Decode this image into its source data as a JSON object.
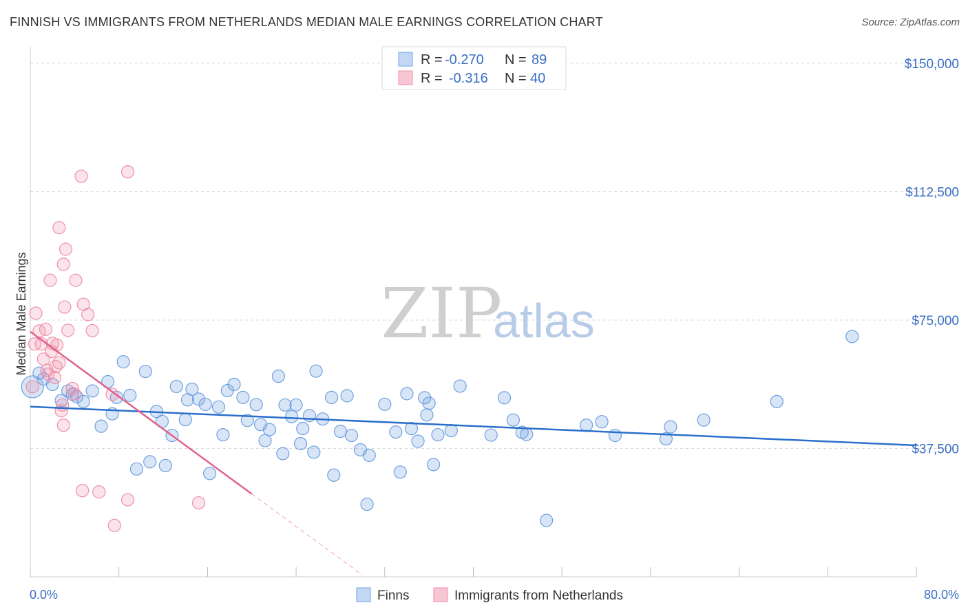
{
  "title": "FINNISH VS IMMIGRANTS FROM NETHERLANDS MEDIAN MALE EARNINGS CORRELATION CHART",
  "source": "Source: ZipAtlas.com",
  "watermark": {
    "part1": "ZIP",
    "part2": "atlas"
  },
  "colors": {
    "finns": "#6fa0e0",
    "finns_line": "#2a6fcb",
    "neth": "#f08fab",
    "neth_line": "#e0628c",
    "axis_text": "#3a6fc4"
  },
  "legend_top": [
    {
      "r_label": "R =",
      "r_value": "-0.270",
      "n_label": "N =",
      "n_value": "89"
    },
    {
      "r_label": "R =",
      "r_value": "-0.316",
      "n_label": "N =",
      "n_value": "40"
    }
  ],
  "legend_bottom": [
    {
      "label": "Finns"
    },
    {
      "label": "Immigrants from Netherlands"
    }
  ],
  "chart_data": {
    "type": "scatter",
    "title": "FINNISH VS IMMIGRANTS FROM NETHERLANDS MEDIAN MALE EARNINGS CORRELATION CHART",
    "xlabel": "",
    "ylabel": "Median Male Earnings",
    "xlim": [
      0,
      80
    ],
    "ylim": [
      0,
      153000
    ],
    "x_tick_labels": [
      "0.0%",
      "80.0%"
    ],
    "y_ticks": [
      37500,
      75000,
      112500,
      150000
    ],
    "y_tick_labels": [
      "$37,500",
      "$75,000",
      "$112,500",
      "$150,000"
    ],
    "grid": true,
    "legend_position": "top-center",
    "series": [
      {
        "name": "Finns",
        "color": "#6fa0e0",
        "trend": {
          "x": [
            0,
            80
          ],
          "y": [
            49700,
            38400
          ]
        },
        "points": [
          [
            0.2,
            55500
          ],
          [
            0.8,
            59500
          ],
          [
            1.2,
            57800
          ],
          [
            2.0,
            56200
          ],
          [
            2.8,
            51500
          ],
          [
            3.4,
            54300
          ],
          [
            3.8,
            53300
          ],
          [
            4.2,
            52600
          ],
          [
            4.8,
            51200
          ],
          [
            5.6,
            54300
          ],
          [
            6.4,
            44000
          ],
          [
            7.0,
            57000
          ],
          [
            7.4,
            47600
          ],
          [
            7.8,
            52400
          ],
          [
            8.4,
            62800
          ],
          [
            9.0,
            53000
          ],
          [
            9.6,
            31500
          ],
          [
            10.4,
            60000
          ],
          [
            10.8,
            33600
          ],
          [
            11.4,
            48300
          ],
          [
            11.9,
            45400
          ],
          [
            12.2,
            32500
          ],
          [
            12.8,
            41300
          ],
          [
            13.2,
            55600
          ],
          [
            14.0,
            45900
          ],
          [
            14.2,
            51700
          ],
          [
            14.6,
            54800
          ],
          [
            15.2,
            51900
          ],
          [
            15.8,
            50400
          ],
          [
            16.2,
            30200
          ],
          [
            17.0,
            49600
          ],
          [
            17.4,
            41500
          ],
          [
            17.8,
            54400
          ],
          [
            18.4,
            56200
          ],
          [
            19.2,
            52400
          ],
          [
            19.6,
            45700
          ],
          [
            20.4,
            50300
          ],
          [
            20.8,
            44500
          ],
          [
            21.2,
            39800
          ],
          [
            21.6,
            43000
          ],
          [
            22.4,
            58600
          ],
          [
            22.8,
            36000
          ],
          [
            23.0,
            50200
          ],
          [
            23.6,
            46800
          ],
          [
            24.0,
            50200
          ],
          [
            24.4,
            38900
          ],
          [
            24.6,
            43300
          ],
          [
            25.2,
            47100
          ],
          [
            25.6,
            36400
          ],
          [
            25.8,
            60100
          ],
          [
            26.4,
            46100
          ],
          [
            27.2,
            52400
          ],
          [
            27.4,
            29700
          ],
          [
            28.0,
            42500
          ],
          [
            28.6,
            52900
          ],
          [
            29.0,
            41300
          ],
          [
            29.8,
            37100
          ],
          [
            30.4,
            21200
          ],
          [
            30.6,
            35500
          ],
          [
            32.0,
            50400
          ],
          [
            33.0,
            42300
          ],
          [
            33.4,
            30600
          ],
          [
            34.0,
            53500
          ],
          [
            34.4,
            43300
          ],
          [
            35.0,
            39600
          ],
          [
            35.6,
            52300
          ],
          [
            35.8,
            47300
          ],
          [
            36.0,
            50700
          ],
          [
            36.4,
            32800
          ],
          [
            36.8,
            41500
          ],
          [
            38.0,
            42700
          ],
          [
            38.8,
            55700
          ],
          [
            41.6,
            41400
          ],
          [
            42.8,
            52300
          ],
          [
            43.6,
            45800
          ],
          [
            44.4,
            42200
          ],
          [
            44.8,
            41600
          ],
          [
            46.6,
            16500
          ],
          [
            50.2,
            44300
          ],
          [
            51.6,
            45300
          ],
          [
            52.8,
            41300
          ],
          [
            57.4,
            40300
          ],
          [
            57.8,
            43800
          ],
          [
            60.8,
            45800
          ],
          [
            67.4,
            51200
          ],
          [
            74.2,
            70200
          ]
        ]
      },
      {
        "name": "Immigrants from Netherlands",
        "color": "#f08fab",
        "trend": {
          "x": [
            0,
            20
          ],
          "y": [
            71600,
            24200
          ]
        },
        "trend_extension": {
          "x": [
            20,
            30
          ],
          "y": [
            24200,
            500
          ]
        },
        "points": [
          [
            0.2,
            55500
          ],
          [
            0.4,
            68000
          ],
          [
            0.5,
            77000
          ],
          [
            0.8,
            71800
          ],
          [
            1.0,
            68000
          ],
          [
            1.2,
            63600
          ],
          [
            1.4,
            72300
          ],
          [
            1.5,
            60300
          ],
          [
            1.6,
            59200
          ],
          [
            1.8,
            86600
          ],
          [
            1.9,
            65800
          ],
          [
            2.0,
            68200
          ],
          [
            2.2,
            58200
          ],
          [
            2.3,
            61400
          ],
          [
            2.4,
            67700
          ],
          [
            2.6,
            62500
          ],
          [
            2.8,
            48500
          ],
          [
            2.9,
            50200
          ],
          [
            2.6,
            102000
          ],
          [
            3.0,
            44300
          ],
          [
            3.0,
            91300
          ],
          [
            3.1,
            78800
          ],
          [
            3.2,
            95700
          ],
          [
            3.4,
            72000
          ],
          [
            3.8,
            55000
          ],
          [
            4.0,
            53400
          ],
          [
            4.1,
            86600
          ],
          [
            4.6,
            117000
          ],
          [
            4.7,
            25200
          ],
          [
            4.8,
            79600
          ],
          [
            5.2,
            76600
          ],
          [
            5.6,
            71900
          ],
          [
            6.2,
            24800
          ],
          [
            7.4,
            53300
          ],
          [
            7.6,
            15000
          ],
          [
            8.8,
            22500
          ],
          [
            8.8,
            118300
          ],
          [
            15.2,
            21600
          ]
        ]
      }
    ]
  }
}
